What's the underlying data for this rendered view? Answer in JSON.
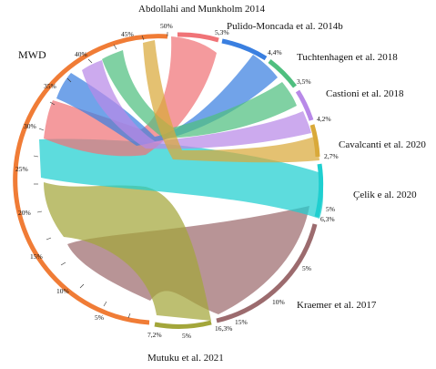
{
  "diagram": {
    "type": "chord",
    "source": {
      "label": "MWD",
      "color": "#f07c36",
      "ticks": [
        "50%",
        "45%",
        "40%",
        "35%",
        "30%",
        "25%",
        "20%",
        "15%",
        "10%",
        "5%"
      ]
    },
    "targets": [
      {
        "label": "Abdollahi and Munkholm 2014",
        "color": "#f07377",
        "value": "",
        "ticks": []
      },
      {
        "label": "Pulido-Moncada et al. 2014b",
        "color": "#3a7fe0",
        "value": "5,3%",
        "ticks": []
      },
      {
        "label": "Tuchtenhagen  et al. 2018",
        "color": "#4fbf7f",
        "value": "4,4%",
        "ticks": []
      },
      {
        "label": "Castioni et al. 2018",
        "color": "#b889e8",
        "value": "3,5%",
        "ticks": []
      },
      {
        "label": "Cavalcanti et al. 2020",
        "color": "#d9a93a",
        "value": "4,2%",
        "ticks": []
      },
      {
        "label": "Çelik e al. 2020",
        "color": "#1fcfd0",
        "value": "2,7%",
        "ticks": [
          "5%"
        ]
      },
      {
        "label": "Kraemer et al. 2017",
        "color": "#9c6b6e",
        "value": "6,3%",
        "ticks": [
          "5%",
          "10%",
          "15%"
        ]
      },
      {
        "label": "Mutuku et al. 2021",
        "color": "#a3a63a",
        "value": "16,3%",
        "ticks": [
          "5%"
        ]
      },
      {
        "label": "",
        "color": "",
        "value": "7,2%",
        "ticks": []
      }
    ]
  }
}
